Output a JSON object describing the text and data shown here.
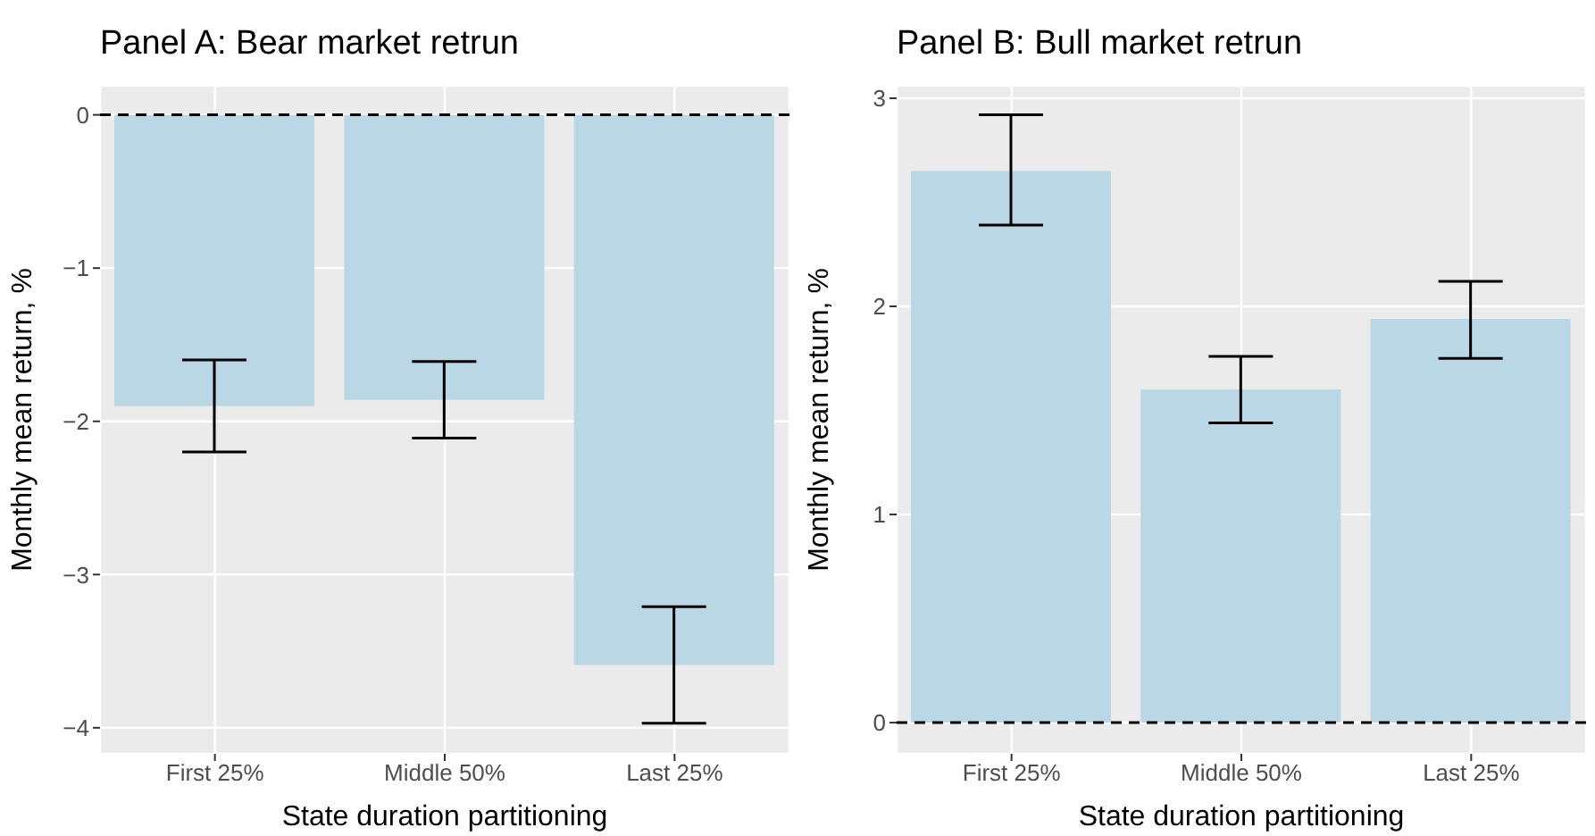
{
  "chart_data": [
    {
      "type": "bar",
      "title": "Panel A: Bear market retrun",
      "xlabel": "State duration partitioning",
      "ylabel": "Monthly mean return, %",
      "categories": [
        "First 25%",
        "Middle 50%",
        "Last 25%"
      ],
      "values": [
        -1.9,
        -1.86,
        -3.59
      ],
      "errors": [
        [
          -2.2,
          -1.6
        ],
        [
          -2.11,
          -1.61
        ],
        [
          -3.97,
          -3.21
        ]
      ],
      "color": "#b9d7e4",
      "ylim": [
        -4.17,
        0.19
      ],
      "yticks": [
        {
          "value": -4,
          "label": "−4"
        },
        {
          "value": -3,
          "label": "−3"
        },
        {
          "value": -2,
          "label": "−2"
        },
        {
          "value": -1,
          "label": "−1"
        },
        0
      ],
      "grid": true,
      "ref_lines": [
        {
          "axis": "y",
          "value": 0,
          "color": "#000000",
          "line_style": "dashed"
        }
      ]
    },
    {
      "type": "bar",
      "title": "Panel B: Bull market retrun",
      "xlabel": "State duration partitioning",
      "ylabel": "Monthly mean return, %",
      "categories": [
        "First 25%",
        "Middle 50%",
        "Last 25%"
      ],
      "values": [
        2.65,
        1.6,
        1.94
      ],
      "errors": [
        [
          2.39,
          2.92
        ],
        [
          1.44,
          1.76
        ],
        [
          1.75,
          2.12
        ]
      ],
      "color": "#b9d7e4",
      "ylim": [
        -0.15,
        3.06
      ],
      "yticks": [
        0,
        1,
        2,
        3
      ],
      "grid": true,
      "ref_lines": [
        {
          "axis": "y",
          "value": 0,
          "color": "#000000",
          "line_style": "dashed"
        }
      ]
    }
  ]
}
